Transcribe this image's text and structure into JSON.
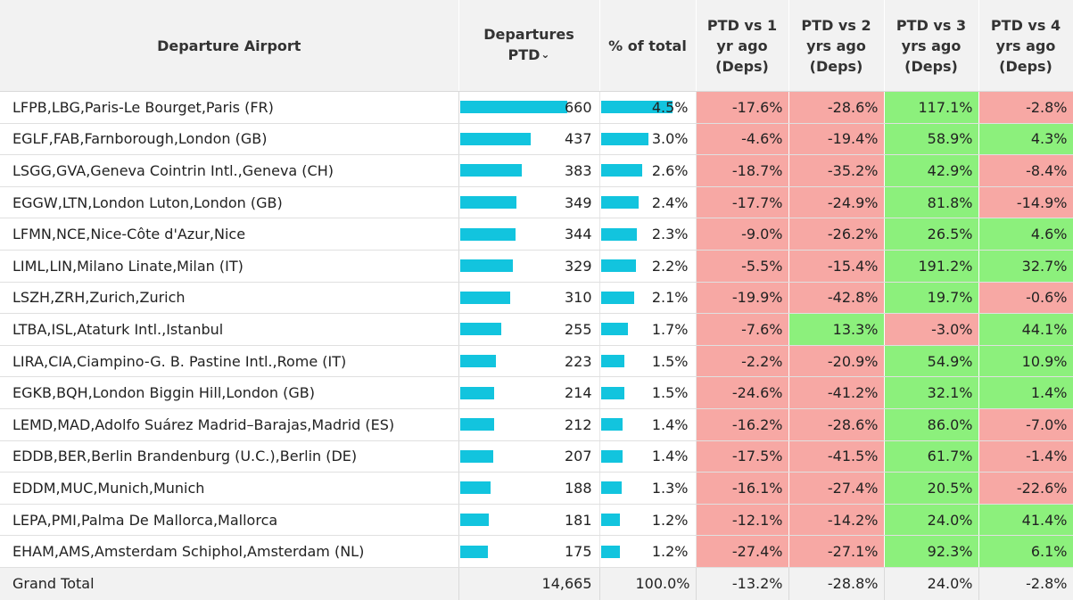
{
  "headers": {
    "airport": "Departure Airport",
    "deps": "Departures PTD",
    "sort_icon": "⌄",
    "pct": "% of total",
    "y1": "PTD vs 1 yr ago (Deps)",
    "y2": "PTD vs 2 yrs ago (Deps)",
    "y3": "PTD vs 3 yrs ago (Deps)",
    "y4": "PTD vs 4 yrs ago (Deps)"
  },
  "colors": {
    "bar": "#12c4de",
    "positive": "#8cf07c",
    "negative": "#f7a8a4"
  },
  "rows": [
    {
      "airport": "LFPB,LBG,Paris-Le Bourget,Paris (FR)",
      "deps": "660",
      "pct": "4.5%",
      "y1": "-17.6%",
      "y2": "-28.6%",
      "y3": "117.1%",
      "y4": "-2.8%"
    },
    {
      "airport": "EGLF,FAB,Farnborough,London (GB)",
      "deps": "437",
      "pct": "3.0%",
      "y1": "-4.6%",
      "y2": "-19.4%",
      "y3": "58.9%",
      "y4": "4.3%"
    },
    {
      "airport": "LSGG,GVA,Geneva Cointrin Intl.,Geneva (CH)",
      "deps": "383",
      "pct": "2.6%",
      "y1": "-18.7%",
      "y2": "-35.2%",
      "y3": "42.9%",
      "y4": "-8.4%"
    },
    {
      "airport": "EGGW,LTN,London Luton,London (GB)",
      "deps": "349",
      "pct": "2.4%",
      "y1": "-17.7%",
      "y2": "-24.9%",
      "y3": "81.8%",
      "y4": "-14.9%"
    },
    {
      "airport": "LFMN,NCE,Nice-Côte d'Azur,Nice",
      "deps": "344",
      "pct": "2.3%",
      "y1": "-9.0%",
      "y2": "-26.2%",
      "y3": "26.5%",
      "y4": "4.6%"
    },
    {
      "airport": "LIML,LIN,Milano Linate,Milan (IT)",
      "deps": "329",
      "pct": "2.2%",
      "y1": "-5.5%",
      "y2": "-15.4%",
      "y3": "191.2%",
      "y4": "32.7%"
    },
    {
      "airport": "LSZH,ZRH,Zurich,Zurich",
      "deps": "310",
      "pct": "2.1%",
      "y1": "-19.9%",
      "y2": "-42.8%",
      "y3": "19.7%",
      "y4": "-0.6%"
    },
    {
      "airport": "LTBA,ISL,Ataturk Intl.,Istanbul",
      "deps": "255",
      "pct": "1.7%",
      "y1": "-7.6%",
      "y2": "13.3%",
      "y3": "-3.0%",
      "y4": "44.1%"
    },
    {
      "airport": "LIRA,CIA,Ciampino-G. B. Pastine Intl.,Rome (IT)",
      "deps": "223",
      "pct": "1.5%",
      "y1": "-2.2%",
      "y2": "-20.9%",
      "y3": "54.9%",
      "y4": "10.9%"
    },
    {
      "airport": "EGKB,BQH,London Biggin Hill,London (GB)",
      "deps": "214",
      "pct": "1.5%",
      "y1": "-24.6%",
      "y2": "-41.2%",
      "y3": "32.1%",
      "y4": "1.4%"
    },
    {
      "airport": "LEMD,MAD,Adolfo Suárez Madrid–Barajas,Madrid (ES)",
      "deps": "212",
      "pct": "1.4%",
      "y1": "-16.2%",
      "y2": "-28.6%",
      "y3": "86.0%",
      "y4": "-7.0%"
    },
    {
      "airport": "EDDB,BER,Berlin Brandenburg (U.C.),Berlin (DE)",
      "deps": "207",
      "pct": "1.4%",
      "y1": "-17.5%",
      "y2": "-41.5%",
      "y3": "61.7%",
      "y4": "-1.4%"
    },
    {
      "airport": "EDDM,MUC,Munich,Munich",
      "deps": "188",
      "pct": "1.3%",
      "y1": "-16.1%",
      "y2": "-27.4%",
      "y3": "20.5%",
      "y4": "-22.6%"
    },
    {
      "airport": "LEPA,PMI,Palma De Mallorca,Mallorca",
      "deps": "181",
      "pct": "1.2%",
      "y1": "-12.1%",
      "y2": "-14.2%",
      "y3": "24.0%",
      "y4": "41.4%"
    },
    {
      "airport": "EHAM,AMS,Amsterdam Schiphol,Amsterdam (NL)",
      "deps": "175",
      "pct": "1.2%",
      "y1": "-27.4%",
      "y2": "-27.1%",
      "y3": "92.3%",
      "y4": "6.1%"
    }
  ],
  "total": {
    "label": "Grand Total",
    "deps": "14,665",
    "pct": "100.0%",
    "y1": "-13.2%",
    "y2": "-28.8%",
    "y3": "24.0%",
    "y4": "-2.8%"
  }
}
